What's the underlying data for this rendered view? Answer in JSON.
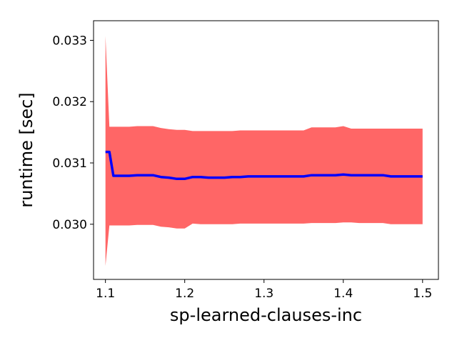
{
  "chart_data": {
    "type": "area",
    "title": "",
    "xlabel": "sp-learned-clauses-inc",
    "ylabel": "runtime [sec]",
    "xlim": [
      1.085,
      1.52
    ],
    "ylim": [
      0.0291,
      0.03332
    ],
    "xticks": [
      1.1,
      1.2,
      1.3,
      1.4,
      1.5
    ],
    "xtick_labels": [
      "1.1",
      "1.2",
      "1.3",
      "1.4",
      "1.5"
    ],
    "yticks": [
      0.03,
      0.031,
      0.032,
      0.033
    ],
    "ytick_labels": [
      "0.030",
      "0.031",
      "0.032",
      "0.033"
    ],
    "grid": false,
    "series": [
      {
        "kind": "band",
        "color": "#ff6666",
        "x": [
          1.1,
          1.105,
          1.11,
          1.12,
          1.13,
          1.14,
          1.15,
          1.16,
          1.17,
          1.18,
          1.19,
          1.2,
          1.21,
          1.22,
          1.23,
          1.24,
          1.25,
          1.26,
          1.27,
          1.28,
          1.29,
          1.3,
          1.31,
          1.32,
          1.33,
          1.34,
          1.35,
          1.36,
          1.37,
          1.38,
          1.39,
          1.4,
          1.41,
          1.42,
          1.43,
          1.44,
          1.45,
          1.46,
          1.47,
          1.48,
          1.49,
          1.5
        ],
        "lower": [
          0.02932,
          0.02998,
          0.02998,
          0.02998,
          0.02998,
          0.02999,
          0.02999,
          0.02999,
          0.02996,
          0.02995,
          0.02993,
          0.02993,
          0.03001,
          0.03,
          0.03,
          0.03,
          0.03,
          0.03,
          0.03001,
          0.03001,
          0.03001,
          0.03001,
          0.03001,
          0.03001,
          0.03001,
          0.03001,
          0.03001,
          0.03002,
          0.03002,
          0.03002,
          0.03002,
          0.03003,
          0.03003,
          0.03002,
          0.03002,
          0.03002,
          0.03002,
          0.03,
          0.03,
          0.03,
          0.03,
          0.03
        ],
        "upper": [
          0.03307,
          0.03159,
          0.03159,
          0.03159,
          0.03159,
          0.0316,
          0.0316,
          0.0316,
          0.03157,
          0.03155,
          0.03154,
          0.03154,
          0.03152,
          0.03152,
          0.03152,
          0.03152,
          0.03152,
          0.03152,
          0.03153,
          0.03153,
          0.03153,
          0.03153,
          0.03153,
          0.03153,
          0.03153,
          0.03153,
          0.03153,
          0.03158,
          0.03158,
          0.03158,
          0.03158,
          0.0316,
          0.03156,
          0.03156,
          0.03156,
          0.03156,
          0.03156,
          0.03156,
          0.03156,
          0.03156,
          0.03156,
          0.03156
        ]
      },
      {
        "kind": "line",
        "color": "#0000ff",
        "x": [
          1.1,
          1.105,
          1.11,
          1.12,
          1.13,
          1.14,
          1.15,
          1.16,
          1.17,
          1.18,
          1.19,
          1.2,
          1.21,
          1.22,
          1.23,
          1.24,
          1.25,
          1.26,
          1.27,
          1.28,
          1.29,
          1.3,
          1.31,
          1.32,
          1.33,
          1.34,
          1.35,
          1.36,
          1.37,
          1.38,
          1.39,
          1.4,
          1.41,
          1.42,
          1.43,
          1.44,
          1.45,
          1.46,
          1.47,
          1.48,
          1.49,
          1.5
        ],
        "y": [
          0.03118,
          0.03118,
          0.03079,
          0.03079,
          0.03079,
          0.0308,
          0.0308,
          0.0308,
          0.03077,
          0.03076,
          0.03074,
          0.03074,
          0.03077,
          0.03077,
          0.03076,
          0.03076,
          0.03076,
          0.03077,
          0.03077,
          0.03078,
          0.03078,
          0.03078,
          0.03078,
          0.03078,
          0.03078,
          0.03078,
          0.03078,
          0.0308,
          0.0308,
          0.0308,
          0.0308,
          0.03081,
          0.0308,
          0.0308,
          0.0308,
          0.0308,
          0.0308,
          0.03078,
          0.03078,
          0.03078,
          0.03078,
          0.03078
        ]
      }
    ]
  }
}
